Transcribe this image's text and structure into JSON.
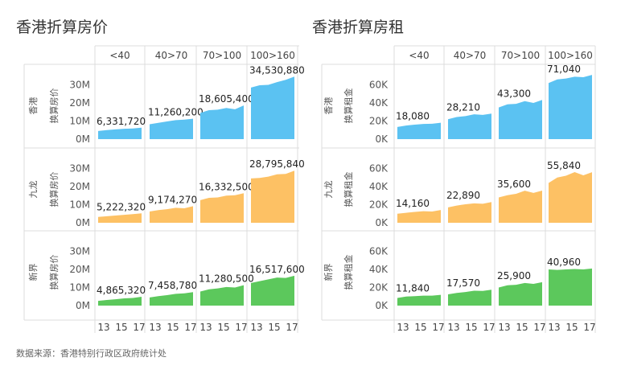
{
  "source_note": "数据来源：香港特别行政区政府统计处",
  "colors": {
    "hk": "#5bc2f2",
    "kln": "#fdc164",
    "nt": "#5cc85c",
    "grid": "#dcdcdc"
  },
  "chart_data": [
    {
      "type": "area",
      "title": "香港折算房价",
      "columns": [
        "<40",
        "40>70",
        "70>100",
        "100>160"
      ],
      "rows": [
        {
          "region": "香港",
          "ylabel": "换算房价",
          "color_key": "hk",
          "series": [
            {
              "x": [
                12,
                13,
                14,
                15,
                16,
                17
              ],
              "y": [
                4.5,
                5.0,
                5.4,
                5.7,
                5.9,
                6.33
              ],
              "label": "6,331,720"
            },
            {
              "x": [
                12,
                13,
                14,
                15,
                16,
                17
              ],
              "y": [
                8.2,
                9.0,
                9.8,
                10.5,
                10.8,
                11.26
              ],
              "label": "11,260,200"
            },
            {
              "x": [
                12,
                13,
                14,
                15,
                16,
                17
              ],
              "y": [
                14.5,
                16.0,
                16.3,
                17.2,
                16.5,
                18.61
              ],
              "label": "18,605,400"
            },
            {
              "x": [
                12,
                13,
                14,
                15,
                16,
                17
              ],
              "y": [
                28.5,
                29.8,
                30.0,
                31.5,
                32.8,
                34.53
              ],
              "label": "34,530,880"
            }
          ]
        },
        {
          "region": "九龙",
          "ylabel": "换算房价",
          "color_key": "kln",
          "series": [
            {
              "x": [
                12,
                13,
                14,
                15,
                16,
                17
              ],
              "y": [
                3.2,
                3.6,
                4.0,
                4.4,
                4.8,
                5.22
              ],
              "label": "5,222,320"
            },
            {
              "x": [
                12,
                13,
                14,
                15,
                16,
                17
              ],
              "y": [
                6.2,
                7.0,
                7.5,
                8.3,
                8.0,
                9.17
              ],
              "label": "9,174,270"
            },
            {
              "x": [
                12,
                13,
                14,
                15,
                16,
                17
              ],
              "y": [
                12.5,
                13.8,
                14.0,
                15.0,
                15.2,
                16.33
              ],
              "label": "16,332,500"
            },
            {
              "x": [
                12,
                13,
                14,
                15,
                16,
                17
              ],
              "y": [
                24.5,
                24.8,
                25.5,
                26.8,
                27.0,
                28.8
              ],
              "label": "28,795,840"
            }
          ]
        },
        {
          "region": "新界",
          "ylabel": "换算房价",
          "color_key": "nt",
          "series": [
            {
              "x": [
                12,
                13,
                14,
                15,
                16,
                17
              ],
              "y": [
                2.6,
                3.1,
                3.5,
                4.0,
                4.2,
                4.87
              ],
              "label": "4,865,320"
            },
            {
              "x": [
                12,
                13,
                14,
                15,
                16,
                17
              ],
              "y": [
                4.5,
                5.2,
                5.8,
                6.5,
                6.8,
                7.46
              ],
              "label": "7,458,780"
            },
            {
              "x": [
                12,
                13,
                14,
                15,
                16,
                17
              ],
              "y": [
                7.8,
                9.0,
                9.5,
                10.3,
                10.0,
                11.28
              ],
              "label": "11,280,500"
            },
            {
              "x": [
                12,
                13,
                14,
                15,
                16,
                17
              ],
              "y": [
                12.5,
                13.5,
                14.5,
                15.5,
                15.3,
                16.52
              ],
              "label": "16,517,600"
            }
          ]
        }
      ],
      "yticks": [
        "0M",
        "10M",
        "20M",
        "30M"
      ],
      "ylim": [
        0,
        36
      ],
      "xticks": [
        "13",
        "15",
        "17"
      ]
    },
    {
      "type": "area",
      "title": "香港折算房租",
      "columns": [
        "<40",
        "40>70",
        "70>100",
        "100>160"
      ],
      "rows": [
        {
          "region": "香港",
          "ylabel": "换算租金",
          "color_key": "hk",
          "series": [
            {
              "x": [
                12,
                13,
                14,
                15,
                16,
                17
              ],
              "y": [
                13.5,
                15.0,
                16.0,
                16.8,
                17.0,
                18.08
              ],
              "label": "18,080"
            },
            {
              "x": [
                12,
                13,
                14,
                15,
                16,
                17
              ],
              "y": [
                22.0,
                24.5,
                25.5,
                27.5,
                26.8,
                28.21
              ],
              "label": "28,210"
            },
            {
              "x": [
                12,
                13,
                14,
                15,
                16,
                17
              ],
              "y": [
                35.0,
                38.5,
                39.0,
                42.0,
                40.0,
                43.3
              ],
              "label": "43,300"
            },
            {
              "x": [
                12,
                13,
                14,
                15,
                16,
                17
              ],
              "y": [
                62.0,
                66.0,
                67.0,
                69.0,
                68.5,
                71.04
              ],
              "label": "71,040"
            }
          ]
        },
        {
          "region": "九龙",
          "ylabel": "换算租金",
          "color_key": "kln",
          "series": [
            {
              "x": [
                12,
                13,
                14,
                15,
                16,
                17
              ],
              "y": [
                10.0,
                11.0,
                12.0,
                12.8,
                12.5,
                14.16
              ],
              "label": "14,160"
            },
            {
              "x": [
                12,
                13,
                14,
                15,
                16,
                17
              ],
              "y": [
                17.0,
                19.0,
                20.5,
                21.5,
                21.0,
                22.89
              ],
              "label": "22,890"
            },
            {
              "x": [
                12,
                13,
                14,
                15,
                16,
                17
              ],
              "y": [
                28.0,
                30.5,
                32.0,
                35.5,
                33.0,
                35.6
              ],
              "label": "35,600"
            },
            {
              "x": [
                12,
                13,
                14,
                15,
                16,
                17
              ],
              "y": [
                44.0,
                50.0,
                52.0,
                56.0,
                52.5,
                55.84
              ],
              "label": "55,840"
            }
          ]
        },
        {
          "region": "新界",
          "ylabel": "换算租金",
          "color_key": "nt",
          "series": [
            {
              "x": [
                12,
                13,
                14,
                15,
                16,
                17
              ],
              "y": [
                8.5,
                10.0,
                10.5,
                11.0,
                11.0,
                11.84
              ],
              "label": "11,840"
            },
            {
              "x": [
                12,
                13,
                14,
                15,
                16,
                17
              ],
              "y": [
                12.5,
                14.0,
                15.0,
                16.5,
                16.2,
                17.57
              ],
              "label": "17,570"
            },
            {
              "x": [
                12,
                13,
                14,
                15,
                16,
                17
              ],
              "y": [
                20.0,
                22.5,
                23.0,
                25.0,
                24.0,
                25.9
              ],
              "label": "25,900"
            },
            {
              "x": [
                12,
                13,
                14,
                15,
                16,
                17
              ],
              "y": [
                40.0,
                39.5,
                40.0,
                40.5,
                40.0,
                40.96
              ],
              "label": "40,960"
            }
          ]
        }
      ],
      "yticks": [
        "0K",
        "20K",
        "40K",
        "60K"
      ],
      "ylim": [
        0,
        72
      ],
      "xticks": [
        "13",
        "15",
        "17"
      ]
    }
  ]
}
